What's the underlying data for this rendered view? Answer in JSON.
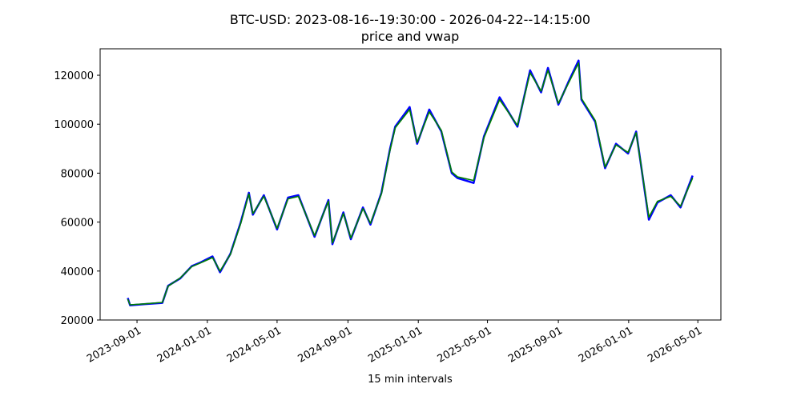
{
  "chart_data": {
    "type": "line",
    "title": "BTC-USD: 2023-08-16--19:30:00 - 2026-04-22--14:15:00",
    "subtitle": "price and vwap",
    "x_label": "15 min intervals",
    "x": [
      "2023-08-16",
      "2023-08-20",
      "2023-09-15",
      "2023-10-15",
      "2023-10-25",
      "2023-11-15",
      "2023-12-05",
      "2023-12-20",
      "2024-01-10",
      "2024-01-23",
      "2024-02-10",
      "2024-02-28",
      "2024-03-13",
      "2024-03-20",
      "2024-04-08",
      "2024-05-01",
      "2024-05-20",
      "2024-06-07",
      "2024-07-05",
      "2024-07-29",
      "2024-08-05",
      "2024-08-24",
      "2024-09-06",
      "2024-09-27",
      "2024-10-10",
      "2024-10-29",
      "2024-11-13",
      "2024-11-22",
      "2024-12-17",
      "2024-12-30",
      "2025-01-20",
      "2025-02-10",
      "2025-02-28",
      "2025-03-10",
      "2025-04-07",
      "2025-04-25",
      "2025-05-22",
      "2025-06-22",
      "2025-07-14",
      "2025-08-02",
      "2025-08-14",
      "2025-09-01",
      "2025-09-18",
      "2025-10-06",
      "2025-10-11",
      "2025-11-04",
      "2025-11-21",
      "2025-12-10",
      "2025-12-31",
      "2026-01-14",
      "2026-02-05",
      "2026-02-20",
      "2026-03-15",
      "2026-04-01",
      "2026-04-22"
    ],
    "series": [
      {
        "color": "#0000ff",
        "values": [
          29000,
          26000,
          26500,
          27000,
          34000,
          37000,
          42000,
          43500,
          46000,
          39500,
          47000,
          60000,
          72000,
          63000,
          71000,
          57000,
          70000,
          71000,
          54000,
          69000,
          51000,
          64000,
          53000,
          66000,
          59000,
          72000,
          90000,
          99000,
          107000,
          92000,
          106000,
          97000,
          80000,
          78000,
          76000,
          95000,
          111000,
          99000,
          122000,
          113000,
          123000,
          108000,
          117000,
          126000,
          110000,
          101000,
          82000,
          92000,
          88000,
          97000,
          61000,
          68000,
          71000,
          66000,
          79000
        ]
      },
      {
        "color": "#008000",
        "values": [
          28500,
          26200,
          26600,
          27200,
          33800,
          37200,
          41800,
          43300,
          45500,
          40000,
          46800,
          59500,
          71500,
          63500,
          70500,
          57500,
          69500,
          70500,
          54500,
          68500,
          51500,
          63500,
          53500,
          65500,
          59500,
          71500,
          89500,
          98500,
          106000,
          92500,
          105000,
          97500,
          80500,
          78500,
          77000,
          94500,
          110000,
          99500,
          121000,
          113500,
          122000,
          108500,
          116500,
          125000,
          110500,
          101500,
          82500,
          91500,
          88500,
          96500,
          62000,
          68500,
          70500,
          66500,
          78000
        ]
      }
    ],
    "xlim": [
      "2023-06-29",
      "2026-06-10"
    ],
    "xticks": [
      "2023-09-01",
      "2024-01-01",
      "2024-05-01",
      "2024-09-01",
      "2025-01-01",
      "2025-05-01",
      "2025-09-01",
      "2026-01-01",
      "2026-05-01"
    ],
    "ylim": [
      20000,
      130800
    ],
    "yticks": [
      20000,
      40000,
      60000,
      80000,
      100000,
      120000
    ]
  }
}
